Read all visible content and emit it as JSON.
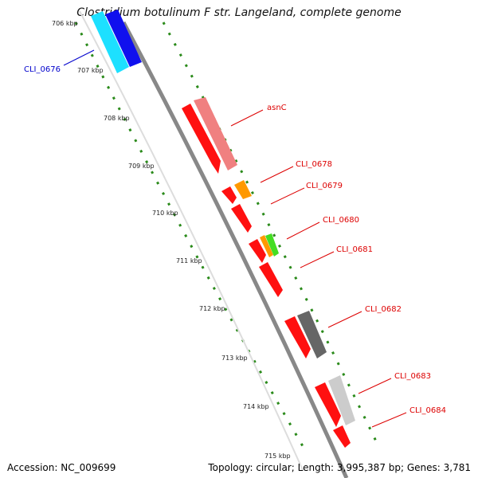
{
  "title": "Clostridium botulinum F str. Langeland, complete genome",
  "footer": {
    "accession": "Accession: NC_009699",
    "summary": "Topology: circular; Length: 3,995,387 bp; Genes: 3,781"
  },
  "colors": {
    "axis": "#888888",
    "dotted": "#2a8a1a",
    "label_red": "#dd0000",
    "label_blue": "#0000cc"
  },
  "ticks": [
    "706 kbp",
    "707 kbp",
    "708 kbp",
    "709 kbp",
    "710 kbp",
    "711 kbp",
    "712 kbp",
    "713 kbp",
    "714 kbp",
    "715 kbp"
  ],
  "genes": [
    {
      "label": "CLI_0676",
      "color_main": "#1de0ff",
      "color_side": "#1010ee",
      "label_color": "#0000cc"
    },
    {
      "label": "asnC",
      "color_main": "#ff1010",
      "color_side": "#f08080",
      "label_color": "#dd0000"
    },
    {
      "label": "CLI_0678",
      "color_main": "#ff1010",
      "color_side": "#ff9900",
      "label_color": "#dd0000"
    },
    {
      "label": "CLI_0679",
      "color_main": "#ff1010",
      "color_side": "",
      "label_color": "#dd0000"
    },
    {
      "label": "CLI_0680",
      "color_main": "#ff1010",
      "color_side": "#44dd22",
      "label_color": "#dd0000"
    },
    {
      "label": "CLI_0681",
      "color_main": "#ff1010",
      "color_side": "",
      "label_color": "#dd0000"
    },
    {
      "label": "CLI_0682",
      "color_main": "#ff1010",
      "color_side": "#666666",
      "label_color": "#dd0000"
    },
    {
      "label": "CLI_0683",
      "color_main": "#ff1010",
      "color_side": "#cccccc",
      "label_color": "#dd0000"
    },
    {
      "label": "CLI_0684",
      "color_main": "#ff1010",
      "color_side": "",
      "label_color": "#dd0000"
    }
  ]
}
